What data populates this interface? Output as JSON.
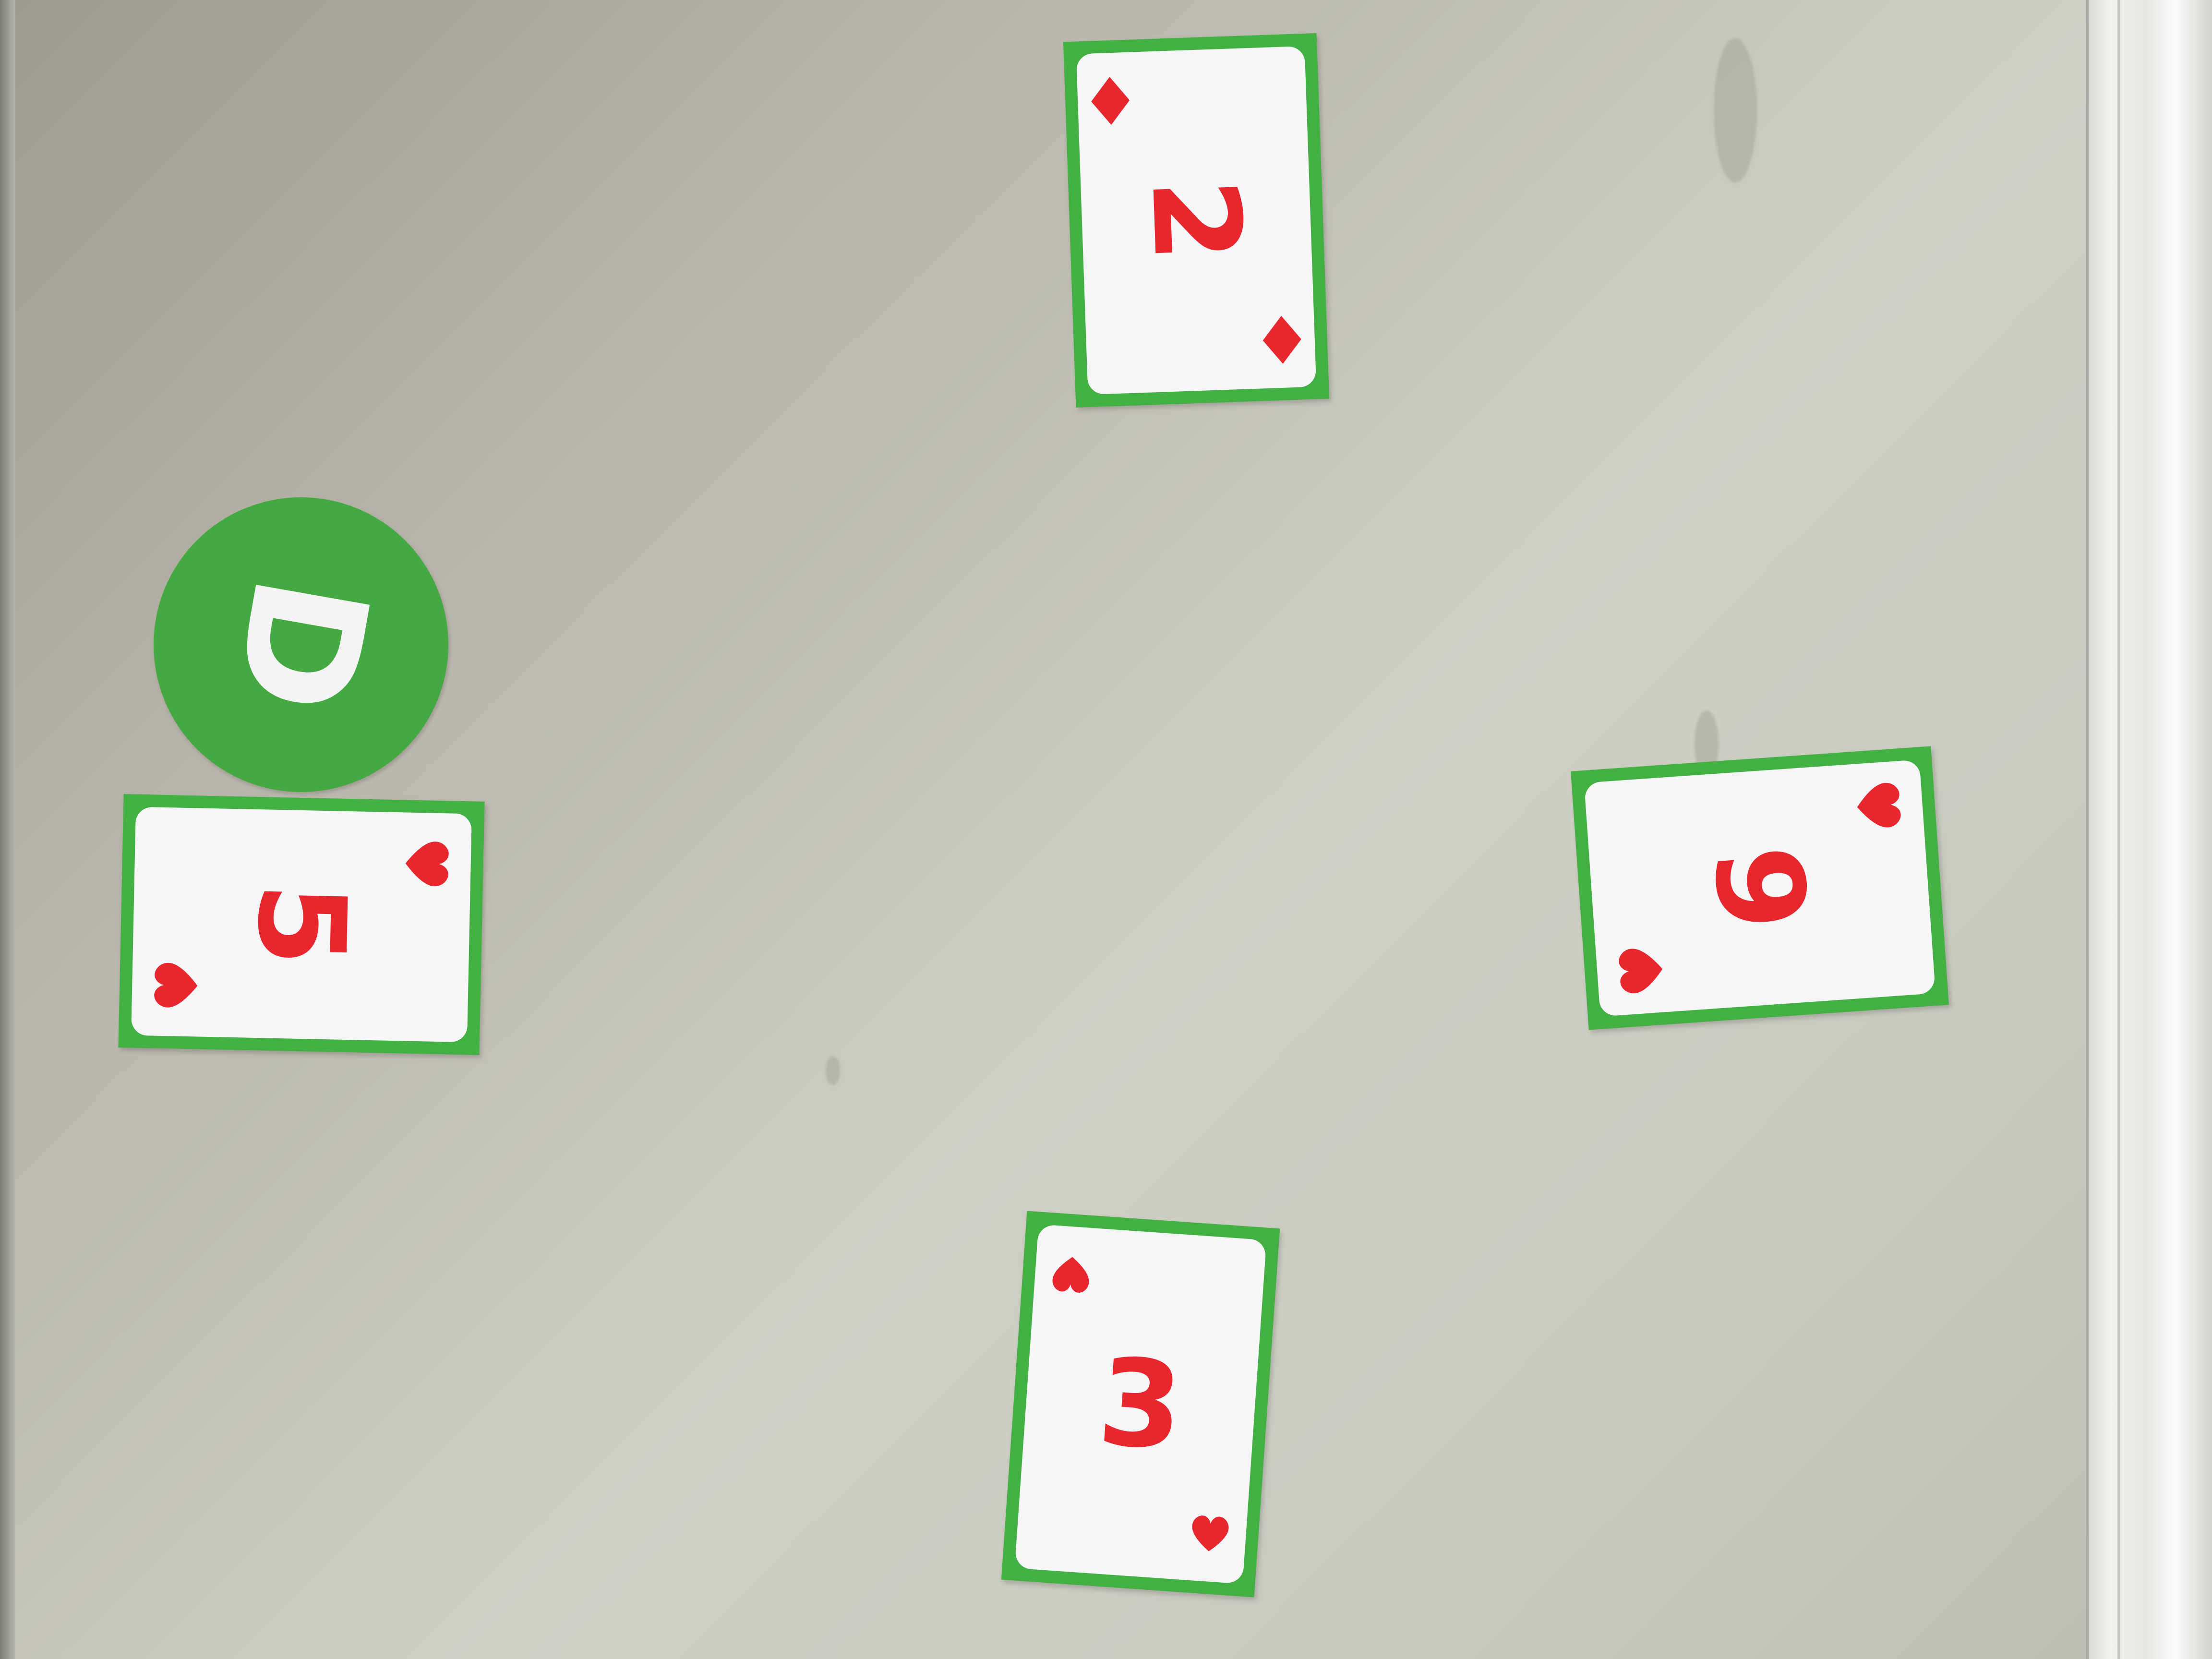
{
  "scene": {
    "background_color": "#c5c5b9",
    "frame_color": "#ececea"
  },
  "dealer_chip": {
    "letter": "D",
    "color": "#43a940"
  },
  "cards": [
    {
      "id": "top",
      "rank": "2",
      "suit": "diamonds",
      "suit_icon": "diamond-icon",
      "color": "#e8262e"
    },
    {
      "id": "left",
      "rank": "5",
      "suit": "hearts",
      "suit_icon": "heart-icon",
      "color": "#e8262e"
    },
    {
      "id": "right",
      "rank": "9",
      "suit": "hearts",
      "suit_icon": "heart-icon",
      "color": "#e8262e"
    },
    {
      "id": "bottom",
      "rank": "3",
      "suit": "hearts",
      "suit_icon": "heart-icon",
      "color": "#e8262e"
    }
  ]
}
